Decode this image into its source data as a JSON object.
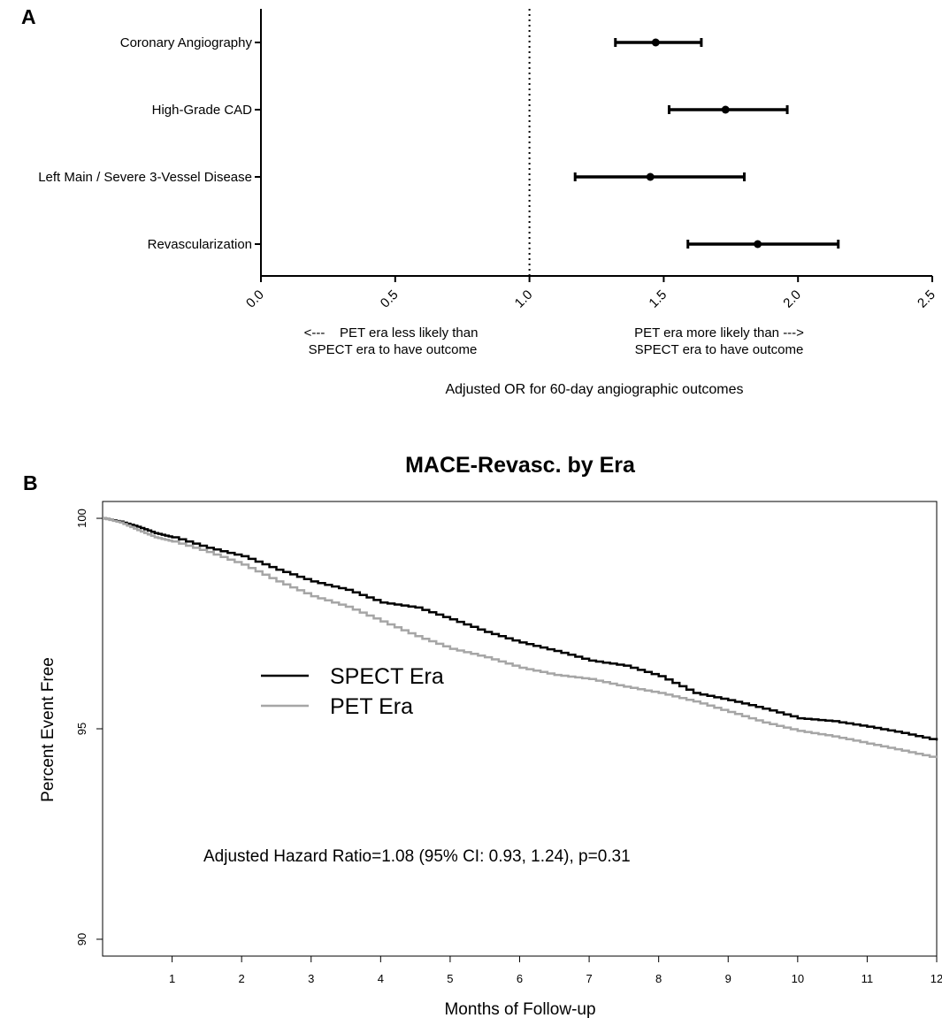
{
  "chart_data": [
    {
      "panel_label": "A",
      "type": "forest",
      "categories": [
        "Coronary Angiography",
        "High-Grade CAD",
        "Left Main / Severe 3-Vessel Disease",
        "Revascularization"
      ],
      "estimates": [
        1.47,
        1.73,
        1.45,
        1.85
      ],
      "ci_low": [
        1.32,
        1.52,
        1.17,
        1.59
      ],
      "ci_high": [
        1.64,
        1.96,
        1.8,
        2.15
      ],
      "xlim": [
        0,
        2.5
      ],
      "xticks": [
        0,
        0.5,
        1,
        1.5,
        2,
        2.5
      ],
      "xtick_labels": [
        "0.0",
        "0.5",
        "1.0",
        "1.5",
        "2.0",
        "2.5"
      ],
      "reference_line": 1.0,
      "note_left": [
        "<---    PET era less likely than",
        "SPECT era to have outcome"
      ],
      "note_right": [
        "PET era more likely than --->",
        "SPECT era to have outcome"
      ],
      "xlabel": "Adjusted OR for 60-day angiographic outcomes"
    },
    {
      "panel_label": "B",
      "type": "line",
      "title": "MACE-Revasc. by Era",
      "xlabel": "Months of Follow-up",
      "ylabel": "Percent Event Free",
      "xlim": [
        0,
        12
      ],
      "ylim": [
        89.6,
        100.4
      ],
      "xticks": [
        1,
        2,
        3,
        4,
        5,
        6,
        7,
        8,
        9,
        10,
        11,
        12
      ],
      "yticks": [
        90,
        95,
        100
      ],
      "legend_position": "center-left",
      "annotation": "Adjusted Hazard Ratio=1.08 (95% CI: 0.93, 1.24), p=0.31",
      "series": [
        {
          "name": "SPECT Era",
          "color": "#000000",
          "x": [
            0,
            0.25,
            0.5,
            0.75,
            1,
            1.5,
            2,
            2.5,
            3,
            3.5,
            4,
            4.5,
            5,
            5.5,
            6,
            6.5,
            7,
            7.5,
            8,
            8.5,
            9,
            9.5,
            10,
            10.5,
            11,
            11.5,
            12
          ],
          "y": [
            100,
            99.92,
            99.8,
            99.65,
            99.55,
            99.3,
            99.1,
            98.78,
            98.5,
            98.3,
            98.0,
            97.88,
            97.6,
            97.3,
            97.05,
            96.85,
            96.62,
            96.5,
            96.25,
            95.85,
            95.68,
            95.48,
            95.25,
            95.18,
            95.05,
            94.9,
            94.72
          ]
        },
        {
          "name": "PET Era",
          "color": "#a6a6a6",
          "x": [
            0,
            0.25,
            0.5,
            0.75,
            1,
            1.5,
            2,
            2.5,
            3,
            3.5,
            4,
            4.5,
            5,
            5.5,
            6,
            6.5,
            7,
            7.5,
            8,
            8.5,
            9,
            9.5,
            10,
            10.5,
            11,
            11.5,
            12
          ],
          "y": [
            100,
            99.9,
            99.72,
            99.55,
            99.45,
            99.2,
            98.9,
            98.5,
            98.15,
            97.9,
            97.55,
            97.2,
            96.9,
            96.7,
            96.45,
            96.28,
            96.18,
            96.0,
            95.85,
            95.65,
            95.4,
            95.15,
            94.95,
            94.82,
            94.65,
            94.48,
            94.3
          ]
        }
      ]
    }
  ]
}
